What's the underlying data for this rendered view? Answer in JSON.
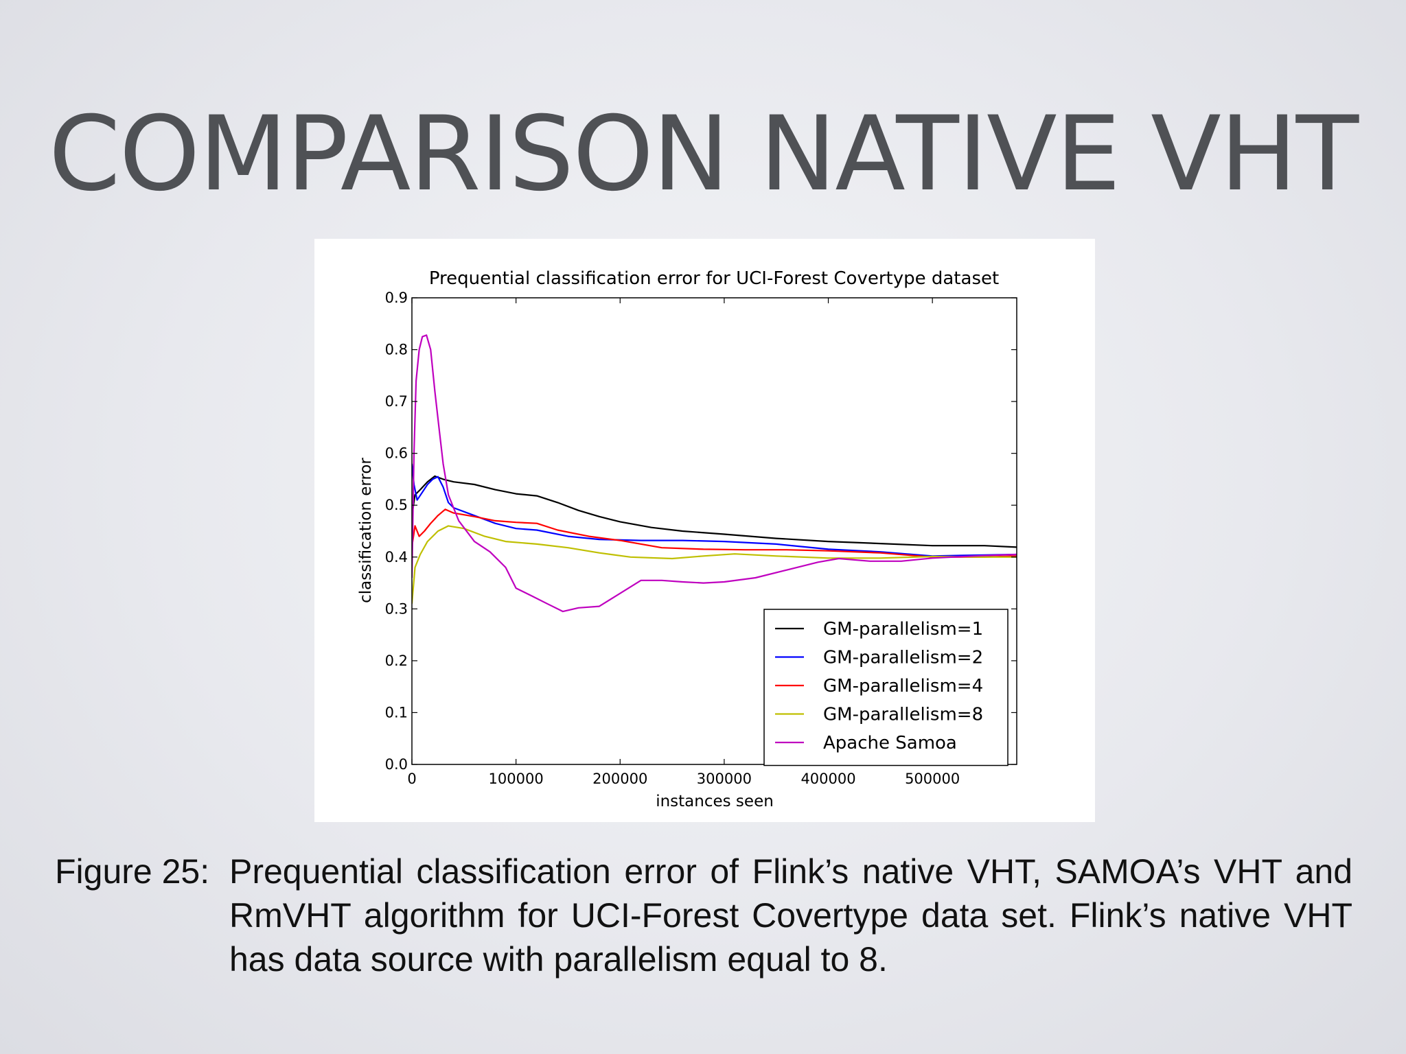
{
  "slide": {
    "title": "COMPARISON NATIVE VHT"
  },
  "caption": {
    "label": "Figure 25:",
    "text": "Prequential classification error of Flink’s native VHT, SAMOA’s VHT and RmVHT algorithm for UCI-Forest Covertype data set. Flink’s native VHT has data source with parallelism equal to 8."
  },
  "chart_data": {
    "type": "line",
    "title": "Prequential classification error for UCI-Forest Covertype dataset",
    "xlabel": "instances seen",
    "ylabel": "classification error",
    "xlim": [
      0,
      581012
    ],
    "ylim": [
      0,
      0.9
    ],
    "xticks": [
      0,
      100000,
      200000,
      300000,
      400000,
      500000
    ],
    "yticks": [
      0.0,
      0.1,
      0.2,
      0.3,
      0.4,
      0.5,
      0.6,
      0.7,
      0.8,
      0.9
    ],
    "xtick_labels": [
      "0",
      "100000",
      "200000",
      "300000",
      "400000",
      "500000"
    ],
    "ytick_labels": [
      "0.0",
      "0.1",
      "0.2",
      "0.3",
      "0.4",
      "0.5",
      "0.6",
      "0.7",
      "0.8",
      "0.9"
    ],
    "grid": false,
    "legend_position": "lower-right",
    "series": [
      {
        "name": "GM-parallelism=1",
        "color": "#000000",
        "points": [
          [
            0,
            0.48
          ],
          [
            3000,
            0.52
          ],
          [
            8000,
            0.53
          ],
          [
            15000,
            0.545
          ],
          [
            22000,
            0.556
          ],
          [
            30000,
            0.55
          ],
          [
            40000,
            0.545
          ],
          [
            60000,
            0.54
          ],
          [
            80000,
            0.53
          ],
          [
            100000,
            0.522
          ],
          [
            120000,
            0.518
          ],
          [
            140000,
            0.505
          ],
          [
            160000,
            0.49
          ],
          [
            180000,
            0.478
          ],
          [
            200000,
            0.468
          ],
          [
            230000,
            0.457
          ],
          [
            260000,
            0.45
          ],
          [
            300000,
            0.444
          ],
          [
            350000,
            0.436
          ],
          [
            400000,
            0.43
          ],
          [
            450000,
            0.426
          ],
          [
            500000,
            0.422
          ],
          [
            550000,
            0.422
          ],
          [
            581012,
            0.419
          ]
        ]
      },
      {
        "name": "GM-parallelism=2",
        "color": "#0000ff",
        "points": [
          [
            0,
            0.58
          ],
          [
            2000,
            0.54
          ],
          [
            5000,
            0.51
          ],
          [
            10000,
            0.525
          ],
          [
            15000,
            0.54
          ],
          [
            20000,
            0.55
          ],
          [
            25000,
            0.555
          ],
          [
            30000,
            0.535
          ],
          [
            35000,
            0.505
          ],
          [
            40000,
            0.495
          ],
          [
            60000,
            0.48
          ],
          [
            80000,
            0.465
          ],
          [
            100000,
            0.455
          ],
          [
            120000,
            0.452
          ],
          [
            150000,
            0.44
          ],
          [
            180000,
            0.434
          ],
          [
            220000,
            0.432
          ],
          [
            260000,
            0.432
          ],
          [
            300000,
            0.43
          ],
          [
            350000,
            0.425
          ],
          [
            400000,
            0.415
          ],
          [
            450000,
            0.41
          ],
          [
            500000,
            0.402
          ],
          [
            550000,
            0.404
          ],
          [
            581012,
            0.405
          ]
        ]
      },
      {
        "name": "GM-parallelism=4",
        "color": "#ff0000",
        "points": [
          [
            0,
            0.42
          ],
          [
            3000,
            0.46
          ],
          [
            7000,
            0.44
          ],
          [
            12000,
            0.45
          ],
          [
            18000,
            0.465
          ],
          [
            25000,
            0.48
          ],
          [
            32000,
            0.492
          ],
          [
            40000,
            0.485
          ],
          [
            60000,
            0.478
          ],
          [
            80000,
            0.47
          ],
          [
            100000,
            0.467
          ],
          [
            120000,
            0.465
          ],
          [
            140000,
            0.452
          ],
          [
            170000,
            0.44
          ],
          [
            200000,
            0.432
          ],
          [
            240000,
            0.418
          ],
          [
            280000,
            0.415
          ],
          [
            320000,
            0.414
          ],
          [
            360000,
            0.414
          ],
          [
            400000,
            0.412
          ],
          [
            450000,
            0.408
          ],
          [
            500000,
            0.4
          ],
          [
            550000,
            0.4
          ],
          [
            581012,
            0.402
          ]
        ]
      },
      {
        "name": "GM-parallelism=8",
        "color": "#bfbf00",
        "points": [
          [
            0,
            0.31
          ],
          [
            3000,
            0.38
          ],
          [
            8000,
            0.405
          ],
          [
            15000,
            0.43
          ],
          [
            25000,
            0.45
          ],
          [
            35000,
            0.46
          ],
          [
            50000,
            0.455
          ],
          [
            70000,
            0.44
          ],
          [
            90000,
            0.43
          ],
          [
            120000,
            0.425
          ],
          [
            150000,
            0.418
          ],
          [
            180000,
            0.408
          ],
          [
            210000,
            0.4
          ],
          [
            250000,
            0.397
          ],
          [
            280000,
            0.402
          ],
          [
            310000,
            0.406
          ],
          [
            350000,
            0.402
          ],
          [
            400000,
            0.398
          ],
          [
            450000,
            0.398
          ],
          [
            500000,
            0.401
          ],
          [
            550000,
            0.4
          ],
          [
            581012,
            0.4
          ]
        ]
      },
      {
        "name": "Apache Samoa",
        "color": "#bf00bf",
        "points": [
          [
            0,
            0.36
          ],
          [
            2000,
            0.6
          ],
          [
            4000,
            0.74
          ],
          [
            7000,
            0.8
          ],
          [
            10000,
            0.825
          ],
          [
            14000,
            0.828
          ],
          [
            18000,
            0.8
          ],
          [
            22000,
            0.72
          ],
          [
            26000,
            0.65
          ],
          [
            30000,
            0.58
          ],
          [
            35000,
            0.52
          ],
          [
            45000,
            0.47
          ],
          [
            60000,
            0.43
          ],
          [
            75000,
            0.41
          ],
          [
            90000,
            0.38
          ],
          [
            100000,
            0.34
          ],
          [
            115000,
            0.325
          ],
          [
            130000,
            0.31
          ],
          [
            145000,
            0.295
          ],
          [
            160000,
            0.302
          ],
          [
            180000,
            0.305
          ],
          [
            200000,
            0.33
          ],
          [
            220000,
            0.355
          ],
          [
            240000,
            0.355
          ],
          [
            260000,
            0.352
          ],
          [
            280000,
            0.35
          ],
          [
            300000,
            0.352
          ],
          [
            330000,
            0.36
          ],
          [
            360000,
            0.375
          ],
          [
            390000,
            0.39
          ],
          [
            410000,
            0.397
          ],
          [
            440000,
            0.392
          ],
          [
            470000,
            0.392
          ],
          [
            500000,
            0.398
          ],
          [
            540000,
            0.402
          ],
          [
            581012,
            0.405
          ]
        ]
      }
    ]
  }
}
